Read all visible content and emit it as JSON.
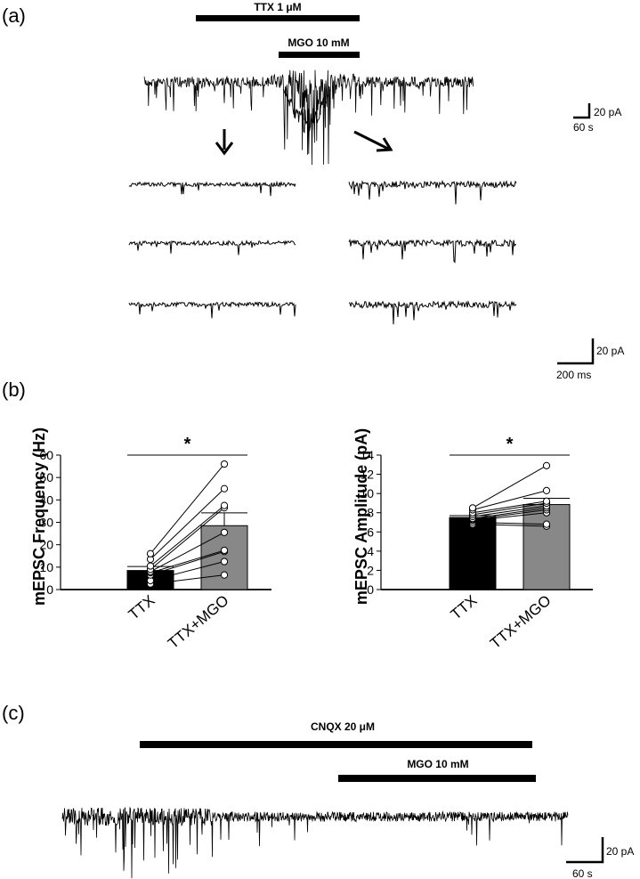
{
  "panels": {
    "a": {
      "label": "(a)",
      "bars": {
        "ttx": "TTX 1 μM",
        "mgo": "MGO 10 mM"
      },
      "scale_main": {
        "y": "20 pA",
        "x": "60 s"
      },
      "scale_inset": {
        "y": "20 pA",
        "x": "200 ms"
      }
    },
    "b": {
      "label": "(b)"
    },
    "c": {
      "label": "(c)",
      "bars": {
        "cnqx": "CNQX 20 μM",
        "mgo": "MGO 10 mM"
      },
      "scale": {
        "y": "20 pA",
        "x": "60 s"
      }
    }
  },
  "colors": {
    "ttx_bar": "#000000",
    "mgo_bar": "#888888",
    "trace": "#000000"
  },
  "chart_data": [
    {
      "type": "bar",
      "ylabel": "mEPSC Frequency (Hz)",
      "categories": [
        "TTX",
        "TTX+MGO"
      ],
      "values": [
        8.5,
        28.5
      ],
      "errors": [
        1.8,
        5.7
      ],
      "yticks": [
        0,
        10,
        20,
        30,
        40,
        50,
        60
      ],
      "ylim": [
        0,
        60
      ],
      "significance": "*",
      "paired_points": [
        [
          2.5,
          6.5
        ],
        [
          4.0,
          12.5
        ],
        [
          6.5,
          17.0
        ],
        [
          7.5,
          17.5
        ],
        [
          8.0,
          25.5
        ],
        [
          9.0,
          36.5
        ],
        [
          10.5,
          37.5
        ],
        [
          13.5,
          45.0
        ],
        [
          16.0,
          56.0
        ]
      ]
    },
    {
      "type": "bar",
      "ylabel": "mEPSC Amplitude (pA)",
      "categories": [
        "TTX",
        "TTX+MGO"
      ],
      "values": [
        7.5,
        8.85
      ],
      "errors": [
        0.2,
        0.65
      ],
      "yticks": [
        0,
        2,
        4,
        6,
        8,
        10,
        12,
        14
      ],
      "ylim": [
        0,
        14
      ],
      "significance": "*",
      "paired_points": [
        [
          6.8,
          6.6
        ],
        [
          7.0,
          6.8
        ],
        [
          7.2,
          8.0
        ],
        [
          7.3,
          8.3
        ],
        [
          7.4,
          8.5
        ],
        [
          7.6,
          8.7
        ],
        [
          7.8,
          9.0
        ],
        [
          8.0,
          9.2
        ],
        [
          8.3,
          10.3
        ],
        [
          8.5,
          12.9
        ]
      ]
    }
  ]
}
